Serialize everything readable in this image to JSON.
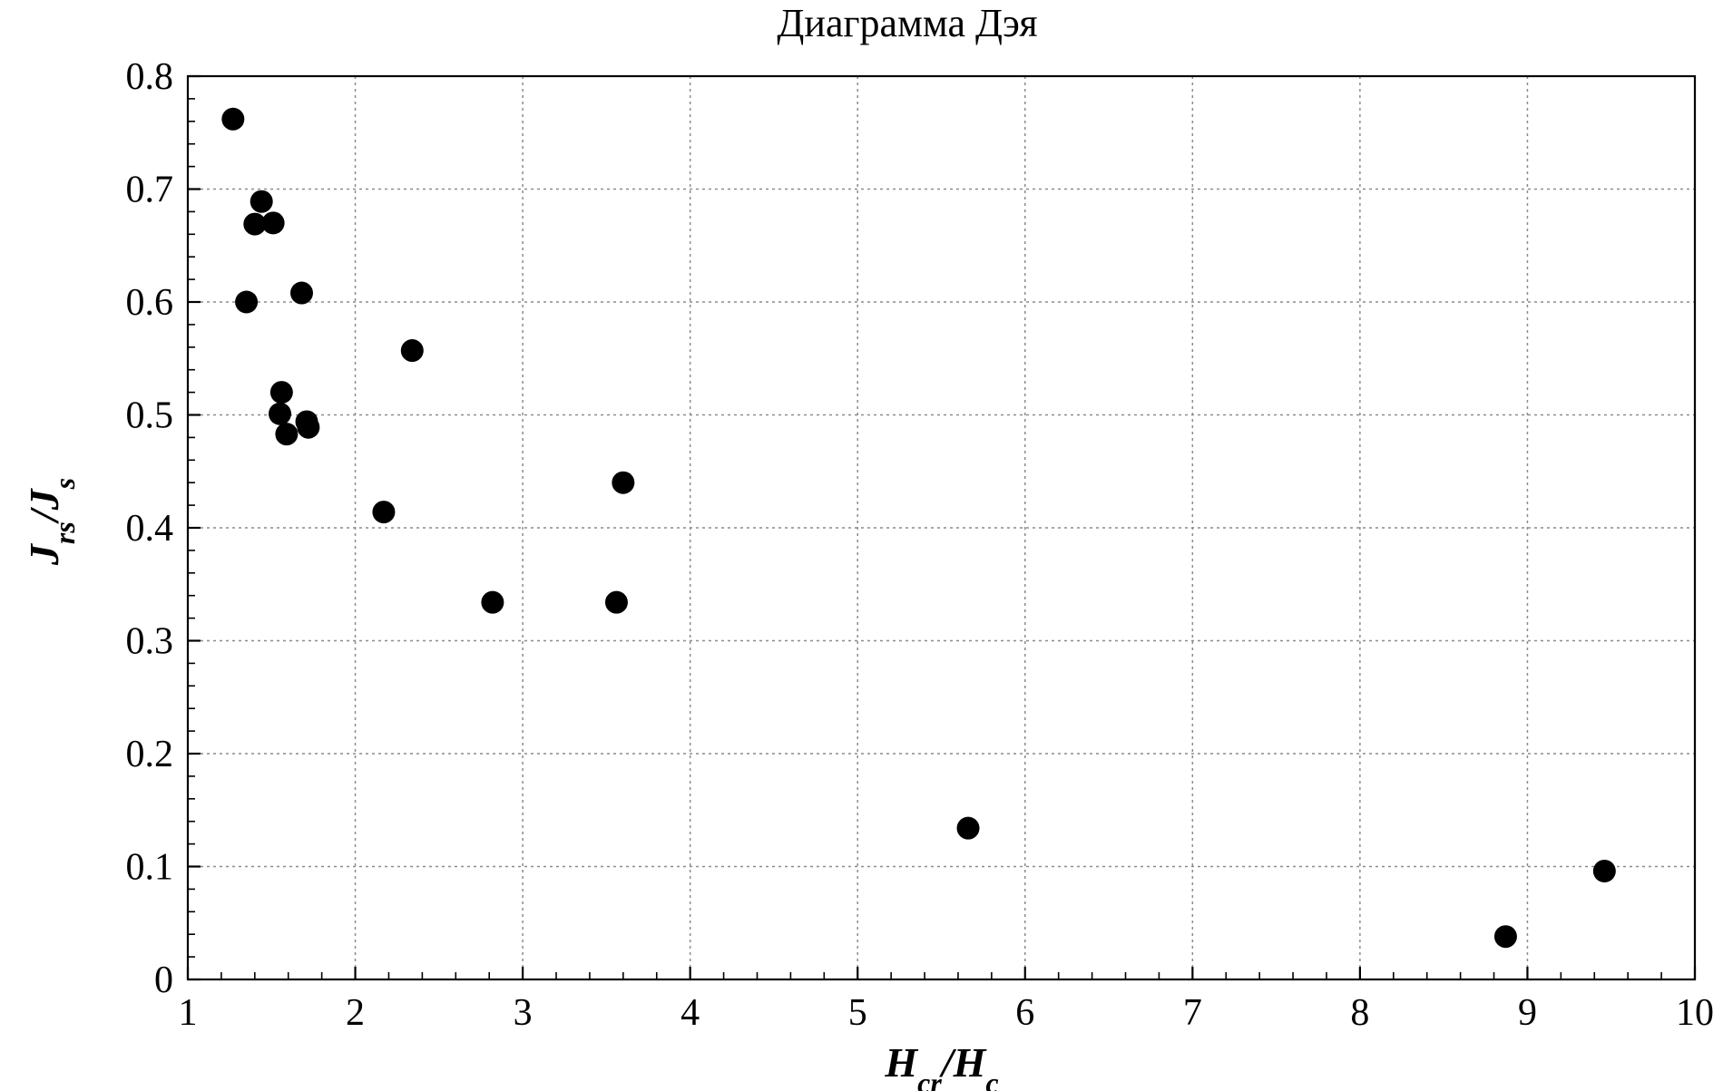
{
  "chart_data": {
    "type": "scatter",
    "title": "Диаграмма Дэя",
    "xlabel": {
      "parts": [
        {
          "text": "H",
          "sub": false
        },
        {
          "text": "cr",
          "sub": true
        },
        {
          "text": "/H",
          "sub": false
        },
        {
          "text": "c",
          "sub": true
        }
      ]
    },
    "ylabel": {
      "parts": [
        {
          "text": "J",
          "sub": false
        },
        {
          "text": "rs",
          "sub": true
        },
        {
          "text": "/J",
          "sub": false
        },
        {
          "text": "s",
          "sub": true
        }
      ]
    },
    "xlim": [
      1,
      10
    ],
    "ylim": [
      0,
      0.8
    ],
    "x_ticks": [
      1,
      2,
      3,
      4,
      5,
      6,
      7,
      8,
      9,
      10
    ],
    "x_tick_labels": [
      "1",
      "2",
      "3",
      "4",
      "5",
      "6",
      "7",
      "8",
      "9",
      "10"
    ],
    "y_ticks": [
      0,
      0.1,
      0.2,
      0.3,
      0.4,
      0.5,
      0.6,
      0.7,
      0.8
    ],
    "y_tick_labels": [
      "0",
      "0.1",
      "0.2",
      "0.3",
      "0.4",
      "0.5",
      "0.6",
      "0.7",
      "0.8"
    ],
    "grid": true,
    "marker_color": "#000000",
    "points": [
      {
        "x": 1.27,
        "y": 0.762
      },
      {
        "x": 1.35,
        "y": 0.6
      },
      {
        "x": 1.4,
        "y": 0.669
      },
      {
        "x": 1.44,
        "y": 0.689
      },
      {
        "x": 1.51,
        "y": 0.67
      },
      {
        "x": 1.55,
        "y": 0.501
      },
      {
        "x": 1.56,
        "y": 0.52
      },
      {
        "x": 1.59,
        "y": 0.483
      },
      {
        "x": 1.68,
        "y": 0.608
      },
      {
        "x": 1.71,
        "y": 0.494
      },
      {
        "x": 1.72,
        "y": 0.489
      },
      {
        "x": 2.17,
        "y": 0.414
      },
      {
        "x": 2.34,
        "y": 0.557
      },
      {
        "x": 2.82,
        "y": 0.334
      },
      {
        "x": 3.56,
        "y": 0.334
      },
      {
        "x": 3.6,
        "y": 0.44
      },
      {
        "x": 5.66,
        "y": 0.134
      },
      {
        "x": 8.87,
        "y": 0.038
      },
      {
        "x": 9.46,
        "y": 0.096
      }
    ]
  }
}
